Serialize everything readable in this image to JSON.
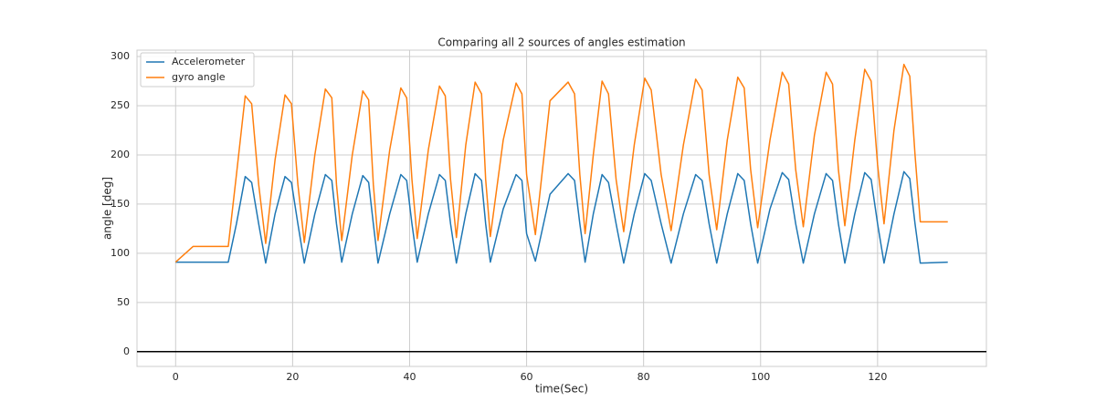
{
  "chart_data": {
    "type": "line",
    "title": "Comparing all 2 sources of angles estimation",
    "x_label": "time(Sec)",
    "y_label": "angle [deg]",
    "xlim": [
      -6.6,
      138.6
    ],
    "ylim": [
      -15,
      306.5
    ],
    "xticks": [
      0,
      20,
      40,
      60,
      80,
      100,
      120
    ],
    "yticks": [
      0,
      50,
      100,
      150,
      200,
      250,
      300
    ],
    "grid": true,
    "legend": "upper left",
    "hline": 0,
    "x": [
      0,
      3,
      9,
      10.4,
      11.9,
      13.0,
      14.2,
      15.4,
      17.0,
      18.7,
      19.8,
      20.9,
      22.0,
      23.8,
      25.6,
      26.7,
      27.5,
      28.4,
      30.2,
      32.0,
      33.0,
      33.8,
      34.6,
      36.6,
      38.5,
      39.5,
      40.4,
      41.3,
      43.2,
      45.1,
      46.1,
      47.0,
      48.0,
      49.6,
      51.2,
      52.3,
      53.0,
      53.8,
      56.0,
      58.2,
      59.2,
      60.0,
      61.5,
      64.0,
      67.1,
      68.2,
      69.1,
      70.0,
      71.4,
      72.9,
      74.0,
      75.3,
      76.6,
      78.4,
      80.2,
      81.3,
      83.0,
      84.7,
      86.8,
      88.9,
      90.0,
      91.2,
      92.5,
      94.3,
      96.1,
      97.2,
      98.3,
      99.5,
      101.6,
      103.7,
      104.8,
      106.0,
      107.3,
      109.2,
      111.2,
      112.3,
      113.3,
      114.4,
      116.1,
      117.8,
      118.9,
      120.0,
      121.1,
      122.8,
      124.5,
      125.5,
      126.4,
      127.3,
      132
    ],
    "series": [
      {
        "name": "Accelerometer",
        "color": "#1f77b4",
        "values": [
          91,
          91,
          91,
          130,
          178,
          172,
          130,
          90,
          140,
          178,
          172,
          130,
          90,
          140,
          180,
          174,
          130,
          91,
          140,
          179,
          172,
          130,
          90,
          140,
          180,
          174,
          130,
          91,
          140,
          180,
          174,
          130,
          90,
          140,
          181,
          174,
          130,
          91,
          145,
          180,
          174,
          120,
          92,
          160,
          181,
          174,
          130,
          91,
          140,
          180,
          172,
          130,
          90,
          140,
          181,
          174,
          130,
          90,
          140,
          180,
          174,
          130,
          90,
          140,
          181,
          174,
          130,
          90,
          145,
          182,
          175,
          130,
          90,
          140,
          181,
          174,
          130,
          90,
          140,
          182,
          175,
          130,
          90,
          140,
          183,
          176,
          130,
          90,
          91
        ]
      },
      {
        "name": "gyro angle",
        "color": "#ff7f0e",
        "values": [
          91,
          107,
          107,
          180,
          260,
          252,
          170,
          110,
          195,
          261,
          252,
          170,
          111,
          200,
          267,
          258,
          170,
          113,
          200,
          265,
          256,
          170,
          113,
          205,
          268,
          258,
          175,
          115,
          205,
          270,
          260,
          175,
          116,
          210,
          274,
          262,
          175,
          117,
          215,
          273,
          262,
          180,
          119,
          255,
          274,
          262,
          180,
          120,
          200,
          275,
          262,
          175,
          122,
          210,
          278,
          266,
          180,
          123,
          210,
          277,
          266,
          180,
          124,
          215,
          279,
          268,
          185,
          126,
          215,
          284,
          272,
          185,
          127,
          220,
          284,
          272,
          185,
          128,
          215,
          287,
          275,
          190,
          130,
          225,
          292,
          280,
          200,
          132,
          132
        ]
      }
    ]
  }
}
